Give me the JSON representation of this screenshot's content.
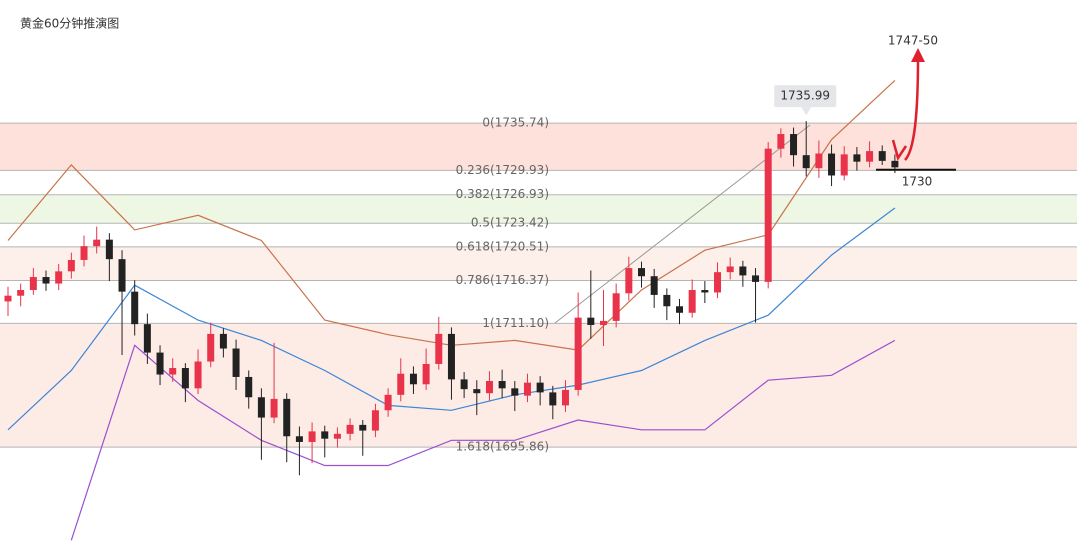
{
  "chart_data": {
    "type": "candlestick",
    "title": "黄金60分钟推演图",
    "ylim": [
      1683.2,
      1750.9
    ],
    "up_color": "#e8334a",
    "down_color": "#222222",
    "candles": [
      [
        1713.8,
        1715.6,
        1712.0,
        1714.5
      ],
      [
        1714.5,
        1716.0,
        1713.2,
        1715.2
      ],
      [
        1715.2,
        1717.9,
        1714.6,
        1716.8
      ],
      [
        1716.8,
        1717.6,
        1715.1,
        1716.0
      ],
      [
        1716.0,
        1718.4,
        1715.2,
        1717.5
      ],
      [
        1717.5,
        1719.8,
        1716.6,
        1718.9
      ],
      [
        1718.9,
        1721.9,
        1718.1,
        1720.6
      ],
      [
        1720.6,
        1723.0,
        1719.7,
        1721.4
      ],
      [
        1721.4,
        1722.2,
        1716.3,
        1719.0
      ],
      [
        1719.0,
        1720.1,
        1707.2,
        1715.0
      ],
      [
        1715.0,
        1716.4,
        1709.6,
        1711.0
      ],
      [
        1711.0,
        1712.3,
        1706.1,
        1707.5
      ],
      [
        1707.5,
        1708.4,
        1703.5,
        1704.8
      ],
      [
        1704.8,
        1706.8,
        1703.9,
        1705.6
      ],
      [
        1705.6,
        1706.2,
        1701.4,
        1703.1
      ],
      [
        1703.1,
        1707.9,
        1702.4,
        1706.4
      ],
      [
        1706.4,
        1711.2,
        1705.7,
        1709.8
      ],
      [
        1709.8,
        1710.5,
        1706.9,
        1708.0
      ],
      [
        1708.0,
        1709.1,
        1702.9,
        1704.5
      ],
      [
        1704.5,
        1705.3,
        1700.6,
        1702.0
      ],
      [
        1702.0,
        1703.1,
        1694.3,
        1699.5
      ],
      [
        1699.5,
        1708.7,
        1698.8,
        1701.8
      ],
      [
        1701.8,
        1702.5,
        1694.0,
        1697.2
      ],
      [
        1697.2,
        1698.4,
        1692.4,
        1696.5
      ],
      [
        1696.5,
        1698.9,
        1693.9,
        1697.8
      ],
      [
        1697.8,
        1698.5,
        1694.6,
        1696.9
      ],
      [
        1696.9,
        1698.3,
        1695.8,
        1697.5
      ],
      [
        1697.5,
        1699.4,
        1696.7,
        1698.6
      ],
      [
        1698.6,
        1699.2,
        1694.8,
        1697.9
      ],
      [
        1697.9,
        1701.2,
        1697.1,
        1700.4
      ],
      [
        1700.4,
        1703.1,
        1699.6,
        1702.3
      ],
      [
        1702.3,
        1706.8,
        1701.5,
        1704.9
      ],
      [
        1704.9,
        1705.8,
        1702.4,
        1703.6
      ],
      [
        1703.6,
        1708.0,
        1702.9,
        1706.1
      ],
      [
        1706.1,
        1711.9,
        1705.4,
        1709.8
      ],
      [
        1709.8,
        1710.6,
        1701.7,
        1704.2
      ],
      [
        1704.2,
        1705.1,
        1701.9,
        1703.0
      ],
      [
        1703.0,
        1704.1,
        1699.8,
        1702.5
      ],
      [
        1702.5,
        1705.2,
        1701.6,
        1704.0
      ],
      [
        1704.0,
        1705.4,
        1701.9,
        1703.1
      ],
      [
        1703.1,
        1704.0,
        1700.3,
        1702.2
      ],
      [
        1702.2,
        1704.9,
        1701.4,
        1703.8
      ],
      [
        1703.8,
        1704.6,
        1701.0,
        1702.6
      ],
      [
        1702.6,
        1703.4,
        1699.3,
        1701.0
      ],
      [
        1701.0,
        1704.1,
        1700.2,
        1702.9
      ],
      [
        1702.9,
        1714.9,
        1702.2,
        1711.8
      ],
      [
        1711.8,
        1717.6,
        1709.2,
        1710.9
      ],
      [
        1710.9,
        1715.2,
        1708.3,
        1711.4
      ],
      [
        1711.4,
        1716.0,
        1710.6,
        1714.8
      ],
      [
        1714.8,
        1719.3,
        1713.9,
        1717.9
      ],
      [
        1717.9,
        1718.7,
        1715.5,
        1716.9
      ],
      [
        1716.9,
        1717.8,
        1713.0,
        1714.6
      ],
      [
        1714.6,
        1715.4,
        1711.5,
        1713.2
      ],
      [
        1713.2,
        1714.1,
        1711.0,
        1712.4
      ],
      [
        1712.4,
        1716.5,
        1711.8,
        1715.2
      ],
      [
        1715.2,
        1716.3,
        1713.6,
        1714.9
      ],
      [
        1714.9,
        1718.6,
        1714.2,
        1717.4
      ],
      [
        1717.4,
        1719.2,
        1716.5,
        1718.1
      ],
      [
        1718.1,
        1718.8,
        1715.6,
        1717.0
      ],
      [
        1717.0,
        1717.9,
        1711.2,
        1716.2
      ],
      [
        1716.2,
        1733.4,
        1715.4,
        1732.6
      ],
      [
        1732.6,
        1735.1,
        1731.5,
        1734.4
      ],
      [
        1734.4,
        1735.2,
        1730.4,
        1731.8
      ],
      [
        1731.8,
        1735.99,
        1729.2,
        1730.2
      ],
      [
        1730.2,
        1733.6,
        1729.0,
        1732.0
      ],
      [
        1732.0,
        1733.1,
        1728.0,
        1729.3
      ],
      [
        1729.3,
        1732.9,
        1728.7,
        1731.9
      ],
      [
        1731.9,
        1732.8,
        1729.9,
        1731.0
      ],
      [
        1731.0,
        1733.5,
        1730.3,
        1732.3
      ],
      [
        1732.3,
        1733.0,
        1730.6,
        1731.1
      ],
      [
        1731.1,
        1731.9,
        1729.6,
        1730.3
      ]
    ],
    "fib_levels": [
      {
        "label": "0(1735.74)",
        "value": 1735.74
      },
      {
        "label": "0.236(1729.93)",
        "value": 1729.93
      },
      {
        "label": "0.382(1726.93)",
        "value": 1726.93
      },
      {
        "label": "0.5(1723.42)",
        "value": 1723.42
      },
      {
        "label": "0.618(1720.51)",
        "value": 1720.51
      },
      {
        "label": "0.786(1716.37)",
        "value": 1716.37
      },
      {
        "label": "1(1711.10)",
        "value": 1711.1
      },
      {
        "label": "1.618(1695.86)",
        "value": 1695.86
      }
    ],
    "bands": [
      {
        "color": "#c8734a",
        "x": [
          0,
          5,
          10,
          15,
          20,
          25,
          30,
          35,
          40,
          45,
          50,
          55,
          60,
          65,
          70
        ],
        "values": [
          1721.3,
          1730.6,
          1722.6,
          1724.4,
          1721.3,
          1711.5,
          1709.7,
          1708.4,
          1709.0,
          1707.8,
          1715.2,
          1720.1,
          1722.0,
          1733.7,
          1741.0
        ]
      },
      {
        "color": "#3b86d6",
        "x": [
          0,
          5,
          10,
          15,
          20,
          25,
          30,
          35,
          40,
          45,
          50,
          55,
          60,
          65,
          70
        ],
        "values": [
          1698.0,
          1705.3,
          1715.8,
          1711.5,
          1709.0,
          1705.3,
          1701.0,
          1700.4,
          1702.3,
          1703.5,
          1705.3,
          1709.0,
          1712.1,
          1719.5,
          1725.3
        ]
      },
      {
        "color": "#9b4fd0",
        "x": [
          0,
          5,
          10,
          15,
          20,
          25,
          30,
          35,
          40,
          45,
          50,
          55,
          60,
          65,
          70
        ],
        "values": [
          null,
          1684.4,
          1708.4,
          1701.6,
          1696.7,
          1693.6,
          1693.6,
          1696.7,
          1696.7,
          1699.2,
          1698.0,
          1698.0,
          1704.1,
          1704.7,
          1709.0
        ]
      }
    ],
    "high_label": 1735.99,
    "target": "1747-50",
    "support": 1730
  }
}
